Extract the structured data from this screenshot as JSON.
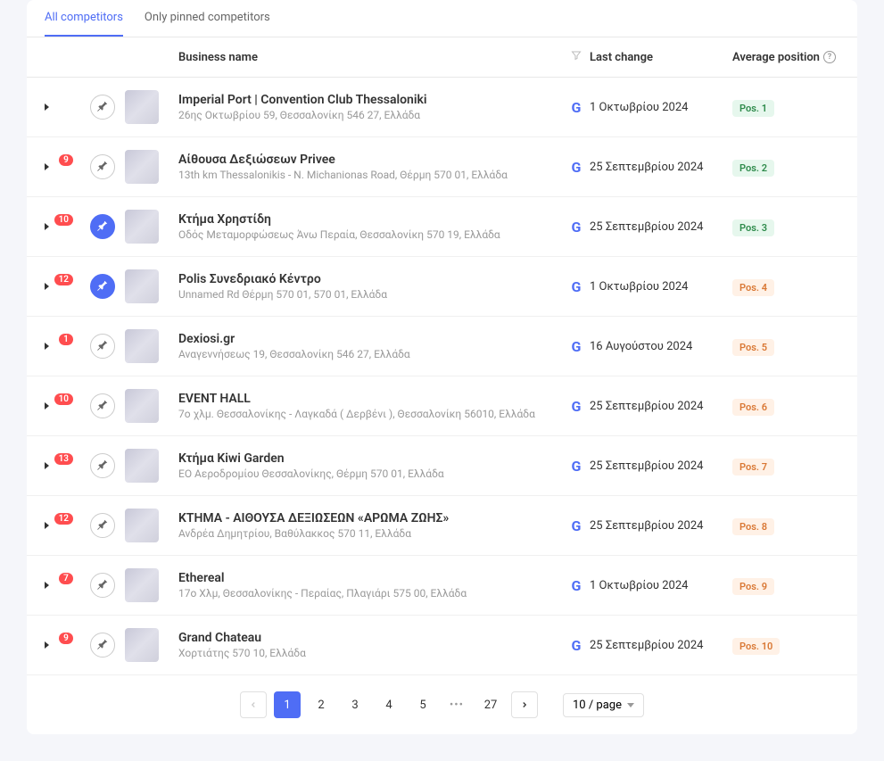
{
  "tabs": {
    "all": "All competitors",
    "pinned": "Only pinned competitors"
  },
  "headers": {
    "name": "Business name",
    "last": "Last change",
    "avg": "Average position"
  },
  "rows": [
    {
      "badge": null,
      "pinned": false,
      "name": "Imperial Port | Convention Club Thessaloniki",
      "addr": "26ης Οκτωβρίου 59, Θεσσαλονίκη 546 27, Ελλάδα",
      "last": "1 Οκτωβρίου 2024",
      "pos": "Pos. 1",
      "pos_style": "green"
    },
    {
      "badge": "9",
      "pinned": false,
      "name": "Αίθουσα Δεξιώσεων Privee",
      "addr": "13th km Thessalonikis - N. Michanionas Road, Θέρμη 570 01, Ελλάδα",
      "last": "25 Σεπτεμβρίου 2024",
      "pos": "Pos. 2",
      "pos_style": "green"
    },
    {
      "badge": "10",
      "pinned": true,
      "name": "Κτήμα Χρηστίδη",
      "addr": "Οδός Μεταμορφώσεως Άνω Περαία, Θεσσαλονίκη 570 19, Ελλάδα",
      "last": "25 Σεπτεμβρίου 2024",
      "pos": "Pos. 3",
      "pos_style": "green"
    },
    {
      "badge": "12",
      "pinned": true,
      "name": "Polis Συνεδριακό Κέντρο",
      "addr": "Unnamed Rd Θέρμη 570 01, 570 01, Ελλάδα",
      "last": "1 Οκτωβρίου 2024",
      "pos": "Pos. 4",
      "pos_style": "orange"
    },
    {
      "badge": "1",
      "pinned": false,
      "name": "Dexiosi.gr",
      "addr": "Αναγεννήσεως 19, Θεσσαλονίκη 546 27, Ελλάδα",
      "last": "16 Αυγούστου 2024",
      "pos": "Pos. 5",
      "pos_style": "orange"
    },
    {
      "badge": "10",
      "pinned": false,
      "name": "EVENT HALL",
      "addr": "7ο χλμ. Θεσσαλονίκης - Λαγκαδά ( Δερβένι ), Θεσσαλονίκη 56010, Ελλάδα",
      "last": "25 Σεπτεμβρίου 2024",
      "pos": "Pos. 6",
      "pos_style": "orange"
    },
    {
      "badge": "13",
      "pinned": false,
      "name": "Κτήμα Kiwi Garden",
      "addr": "ΕΟ Αεροδρομίου Θεσσαλονίκης, Θέρμη 570 01, Ελλάδα",
      "last": "25 Σεπτεμβρίου 2024",
      "pos": "Pos. 7",
      "pos_style": "orange"
    },
    {
      "badge": "12",
      "pinned": false,
      "name": "ΚΤΗΜΑ - ΑΙΘΟΥΣΑ ΔΕΞΙΩΣΕΩΝ «ΑΡΩΜΑ ΖΩΗΣ»",
      "addr": "Ανδρέα Δημητρίου, Βαθύλακκος 570 11, Ελλάδα",
      "last": "25 Σεπτεμβρίου 2024",
      "pos": "Pos. 8",
      "pos_style": "orange"
    },
    {
      "badge": "7",
      "pinned": false,
      "name": "Ethereal",
      "addr": "17ο Χλμ, Θεσσαλονίκης - Περαίας, Πλαγιάρι 575 00, Ελλάδα",
      "last": "1 Οκτωβρίου 2024",
      "pos": "Pos. 9",
      "pos_style": "orange"
    },
    {
      "badge": "9",
      "pinned": false,
      "name": "Grand Chateau",
      "addr": "Χορτιάτης 570 10, Ελλάδα",
      "last": "25 Σεπτεμβρίου 2024",
      "pos": "Pos. 10",
      "pos_style": "orange"
    }
  ],
  "pagination": {
    "pages": [
      "1",
      "2",
      "3",
      "4",
      "5"
    ],
    "last": "27",
    "size": "10 / page"
  },
  "colors": {
    "accent": "#4f6df5",
    "badge_red": "#ff4d4f",
    "pos_green_bg": "#e6f7ed",
    "pos_green_fg": "#2d8a4a",
    "pos_orange_bg": "#fff1e6",
    "pos_orange_fg": "#d97733"
  }
}
